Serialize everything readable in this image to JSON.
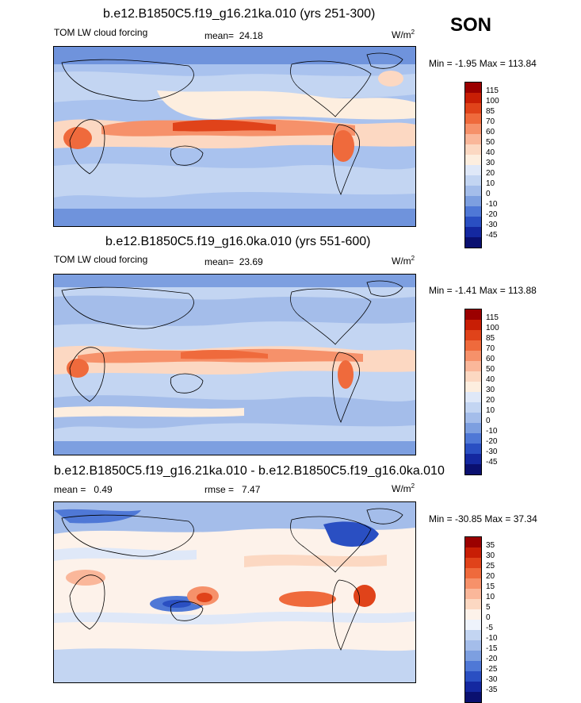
{
  "season": "SON",
  "panels": [
    {
      "title": "b.e12.B1850C5.f19_g16.21ka.010 (yrs 251-300)",
      "left_label": "TOM LW cloud forcing",
      "mean_label": "mean=",
      "mean_value": "24.18",
      "rmse_label": "",
      "rmse_value": "",
      "units_base": "W/m",
      "units_sup": "2",
      "minmax": "Min =  -1.95 Max = 113.84",
      "levels": [
        "115",
        "100",
        "85",
        "70",
        "60",
        "50",
        "40",
        "30",
        "20",
        "10",
        "0",
        "-10",
        "-20",
        "-30",
        "-45"
      ],
      "colors": [
        "#9b0000",
        "#c81e05",
        "#e0431a",
        "#ef6a3c",
        "#f6916a",
        "#fab79a",
        "#fcd8c2",
        "#fdeedf",
        "#dfe8f8",
        "#c3d5f2",
        "#a4bdea",
        "#7d9fe0",
        "#4f78d6",
        "#2a4fc2",
        "#1428a0",
        "#0a1070"
      ]
    },
    {
      "title": "b.e12.B1850C5.f19_g16.0ka.010 (yrs 551-600)",
      "left_label": "TOM LW cloud forcing",
      "mean_label": "mean=",
      "mean_value": "23.69",
      "rmse_label": "",
      "rmse_value": "",
      "units_base": "W/m",
      "units_sup": "2",
      "minmax": "Min =  -1.41 Max = 113.88",
      "levels": [
        "115",
        "100",
        "85",
        "70",
        "60",
        "50",
        "40",
        "30",
        "20",
        "10",
        "0",
        "-10",
        "-20",
        "-30",
        "-45"
      ],
      "colors": [
        "#9b0000",
        "#c81e05",
        "#e0431a",
        "#ef6a3c",
        "#f6916a",
        "#fab79a",
        "#fcd8c2",
        "#fdeedf",
        "#dfe8f8",
        "#c3d5f2",
        "#a4bdea",
        "#7d9fe0",
        "#4f78d6",
        "#2a4fc2",
        "#1428a0",
        "#0a1070"
      ]
    },
    {
      "title": "b.e12.B1850C5.f19_g16.21ka.010 - b.e12.B1850C5.f19_g16.0ka.010",
      "left_label": "mean =",
      "mean_label": "",
      "mean_value": "0.49",
      "rmse_label": "rmse =",
      "rmse_value": "7.47",
      "units_base": "W/m",
      "units_sup": "2",
      "minmax": "Min = -30.85 Max =  37.34",
      "levels": [
        "35",
        "30",
        "25",
        "20",
        "15",
        "10",
        "5",
        "0",
        "-5",
        "-10",
        "-15",
        "-20",
        "-25",
        "-30",
        "-35"
      ],
      "colors": [
        "#9b0000",
        "#c81e05",
        "#e0431a",
        "#ef6a3c",
        "#f6916a",
        "#fab79a",
        "#fcd8c2",
        "#fdf2ea",
        "#eef3fc",
        "#c3d5f2",
        "#a4bdea",
        "#7d9fe0",
        "#4f78d6",
        "#2a4fc2",
        "#1428a0",
        "#0a1070"
      ]
    }
  ],
  "chart_data": [
    {
      "type": "heatmap",
      "title": "b.e12.B1850C5.f19_g16.21ka.010 (yrs 251-300)",
      "variable": "TOM LW cloud forcing",
      "units": "W/m2",
      "mean": 24.18,
      "min": -1.95,
      "max": 113.84,
      "contour_levels": [
        -45,
        -30,
        -20,
        -10,
        0,
        10,
        20,
        30,
        40,
        50,
        60,
        70,
        85,
        100,
        115
      ]
    },
    {
      "type": "heatmap",
      "title": "b.e12.B1850C5.f19_g16.0ka.010 (yrs 551-600)",
      "variable": "TOM LW cloud forcing",
      "units": "W/m2",
      "mean": 23.69,
      "min": -1.41,
      "max": 113.88,
      "contour_levels": [
        -45,
        -30,
        -20,
        -10,
        0,
        10,
        20,
        30,
        40,
        50,
        60,
        70,
        85,
        100,
        115
      ]
    },
    {
      "type": "heatmap",
      "title": "b.e12.B1850C5.f19_g16.21ka.010 - b.e12.B1850C5.f19_g16.0ka.010",
      "units": "W/m2",
      "mean": 0.49,
      "rmse": 7.47,
      "min": -30.85,
      "max": 37.34,
      "contour_levels": [
        -35,
        -30,
        -25,
        -20,
        -15,
        -10,
        -5,
        0,
        5,
        10,
        15,
        20,
        25,
        30,
        35
      ]
    }
  ]
}
